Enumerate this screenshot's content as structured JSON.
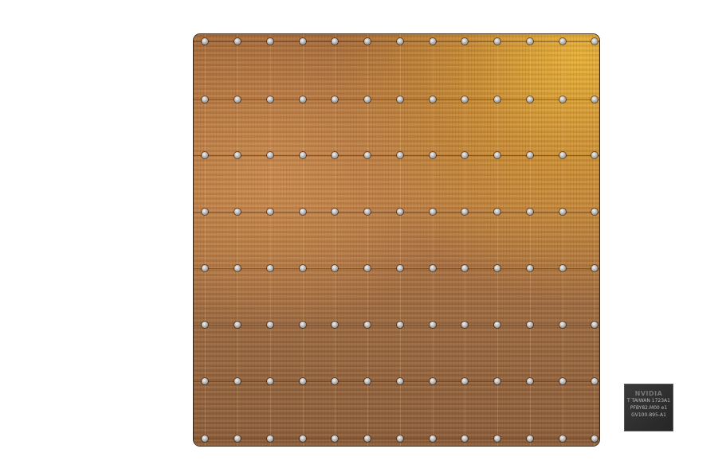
{
  "image": {
    "description_subjects": [
      "wafer-scale-chip",
      "gpu-chip"
    ],
    "gpu_chip": {
      "logo": "NVIDIA",
      "lines": [
        "T TAIWAN 1723A1",
        "PFBY82.M00",
        "GV100-895-A1"
      ],
      "mark": "e1"
    },
    "colors": {
      "wafer_copper": "#a86c3c",
      "wafer_gold": "#e8b13a",
      "chip": "#2e2e2e"
    }
  }
}
